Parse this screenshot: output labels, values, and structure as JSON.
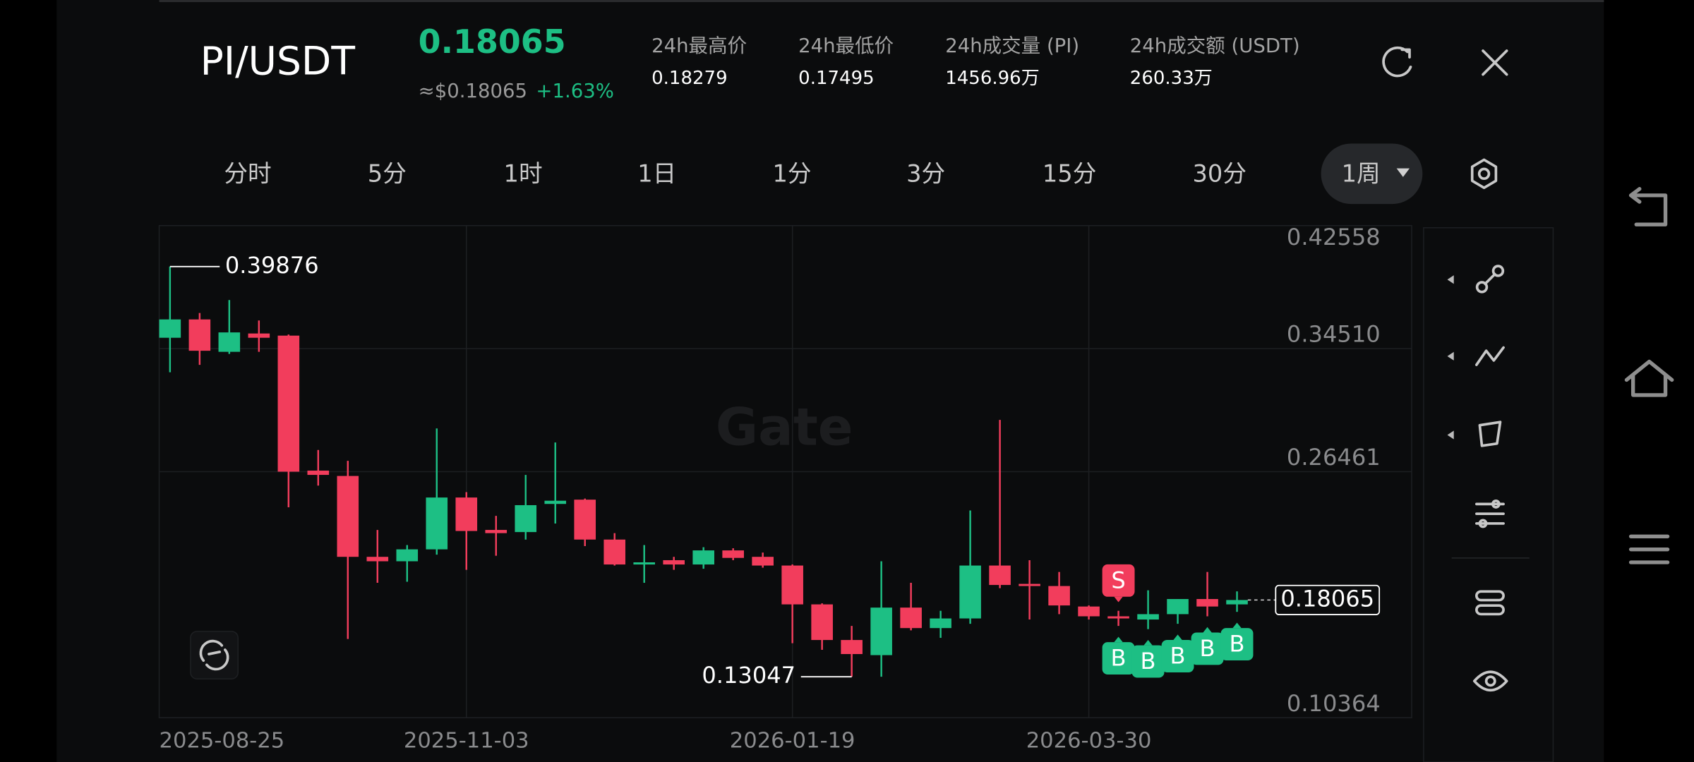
{
  "header": {
    "pair": "PI/USDT",
    "price": "0.18065",
    "approx": "≈$0.18065",
    "change": "+1.63%",
    "stats": [
      {
        "label": "24h最高价",
        "value": "0.18279"
      },
      {
        "label": "24h最低价",
        "value": "0.17495"
      },
      {
        "label": "24h成交量 (PI)",
        "value": "1456.96万"
      },
      {
        "label": "24h成交额 (USDT)",
        "value": "260.33万"
      }
    ]
  },
  "tabs": [
    "分时",
    "5分",
    "1时",
    "1日",
    "1分",
    "3分",
    "15分",
    "30分",
    "1周"
  ],
  "chart_data": {
    "type": "candlestick",
    "watermark": "Gate",
    "categories": [
      "2025-08-25",
      null,
      null,
      null,
      null,
      null,
      null,
      null,
      null,
      null,
      "2025-11-03",
      null,
      null,
      null,
      null,
      null,
      null,
      null,
      null,
      null,
      null,
      "2026-01-19",
      null,
      null,
      null,
      null,
      null,
      null,
      null,
      null,
      null,
      "2026-03-30",
      null,
      null,
      null,
      null,
      null
    ],
    "open": [
      0.3522,
      0.3642,
      0.343,
      0.355,
      0.3536,
      0.2653,
      0.2618,
      0.2089,
      0.206,
      0.2138,
      0.2477,
      0.2265,
      0.2251,
      0.2435,
      0.2463,
      0.2202,
      0.2039,
      0.2067,
      0.2039,
      0.2131,
      0.2089,
      0.2032,
      0.1778,
      0.1545,
      0.1446,
      0.1757,
      0.1623,
      0.1686,
      0.2032,
      0.1912,
      0.1898,
      0.1764,
      0.17,
      0.1679,
      0.1714,
      0.1813,
      0.1778
    ],
    "high": [
      0.39876,
      0.3684,
      0.3769,
      0.3635,
      0.3543,
      0.2788,
      0.2717,
      0.2265,
      0.2166,
      0.2929,
      0.2512,
      0.2357,
      0.2625,
      0.2837,
      0.247,
      0.2244,
      0.2166,
      0.2089,
      0.2152,
      0.2145,
      0.2117,
      0.2039,
      0.1785,
      0.1637,
      0.206,
      0.1919,
      0.1736,
      0.2392,
      0.2985,
      0.2067,
      0.199,
      0.1771,
      0.1736,
      0.187,
      0.1813,
      0.199,
      0.1863
    ],
    "low": [
      0.3296,
      0.3345,
      0.3416,
      0.343,
      0.2413,
      0.2555,
      0.1552,
      0.1919,
      0.1926,
      0.2103,
      0.2004,
      0.2096,
      0.2202,
      0.2307,
      0.2159,
      0.2032,
      0.1919,
      0.2004,
      0.2011,
      0.2067,
      0.2018,
      0.1524,
      0.1481,
      0.13047,
      0.1305,
      0.1608,
      0.1559,
      0.1651,
      0.1884,
      0.1679,
      0.1714,
      0.1679,
      0.1637,
      0.1616,
      0.1651,
      0.17,
      0.1729
    ],
    "close": [
      0.3642,
      0.3437,
      0.3557,
      0.3522,
      0.2646,
      0.2625,
      0.2089,
      0.206,
      0.2138,
      0.2477,
      0.2258,
      0.2244,
      0.2427,
      0.2456,
      0.2202,
      0.2039,
      0.2053,
      0.2039,
      0.2131,
      0.2082,
      0.2032,
      0.1778,
      0.1545,
      0.1453,
      0.1757,
      0.1623,
      0.1686,
      0.2032,
      0.1905,
      0.1898,
      0.1771,
      0.17,
      0.1686,
      0.1714,
      0.1813,
      0.1764,
      0.18065
    ],
    "up_color": "#1dbf84",
    "down_color": "#f23d5c",
    "ylim": [
      0.10364,
      0.42558
    ],
    "yticks": [
      0.42558,
      {
        "value": 0.3451,
        "label": "0.34510"
      },
      0.26461,
      0.10364
    ],
    "grid": true,
    "max_annotation": 0.39876,
    "min_annotation": 0.13047,
    "last_price": 0.18065,
    "signals": [
      {
        "index": 32,
        "label": "S"
      },
      {
        "index": 32,
        "label": "B"
      },
      {
        "index": 33,
        "label": "B"
      },
      {
        "index": 34,
        "label": "B"
      },
      {
        "index": 35,
        "label": "B"
      },
      {
        "index": 36,
        "label": "B"
      }
    ]
  }
}
